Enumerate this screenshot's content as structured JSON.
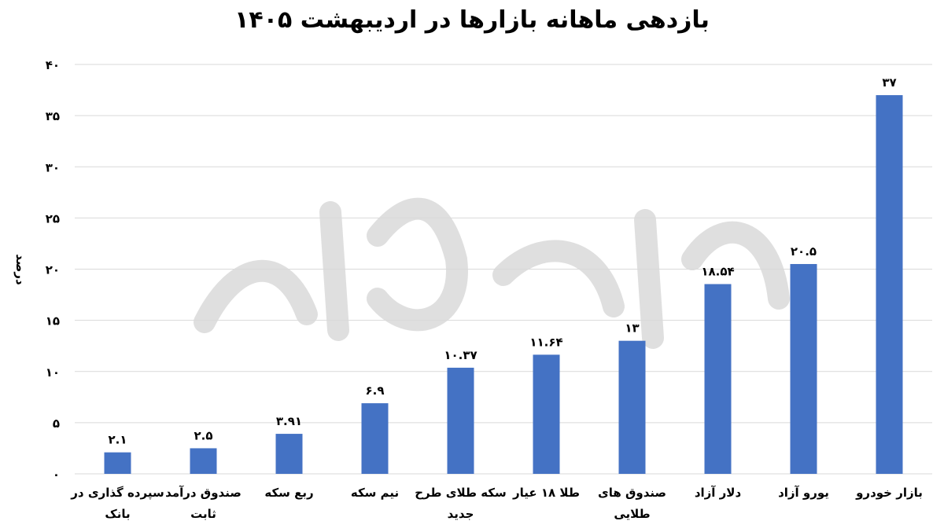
{
  "chart_data": {
    "type": "bar",
    "title": "بازدهی ماهانه بازارها در اردیبهشت ۱۴۰۵",
    "ylabel": "درصد",
    "xlabel": "",
    "ylim": [
      0,
      40
    ],
    "yticks": [
      0,
      5,
      10,
      15,
      20,
      25,
      30,
      35,
      40
    ],
    "ytick_labels": [
      "۰",
      "۵",
      "۱۰",
      "۱۵",
      "۲۰",
      "۲۵",
      "۳۰",
      "۳۵",
      "۴۰"
    ],
    "grid": true,
    "bar_color": "#4472c4",
    "categories": [
      [
        "سپرده گذاری در",
        "بانک"
      ],
      [
        "صندوق درآمد",
        "ثابت"
      ],
      [
        "ربع سکه"
      ],
      [
        "نیم سکه"
      ],
      [
        "سکه طلای طرح",
        "جدید"
      ],
      [
        "طلا ۱۸ عیار"
      ],
      [
        "صندوق های",
        "طلایی"
      ],
      [
        "دلار آزاد"
      ],
      [
        "یورو آزاد"
      ],
      [
        "بازار خودرو"
      ]
    ],
    "values": [
      2.1,
      2.5,
      3.91,
      6.9,
      10.37,
      11.64,
      13,
      18.54,
      20.5,
      37
    ],
    "value_labels": [
      "۲.۱",
      "۲.۵",
      "۳.۹۱",
      "۶.۹",
      "۱۰.۳۷",
      "۱۱.۶۴",
      "۱۳",
      "۱۸.۵۴",
      "۲۰.۵",
      "۳۷"
    ]
  }
}
